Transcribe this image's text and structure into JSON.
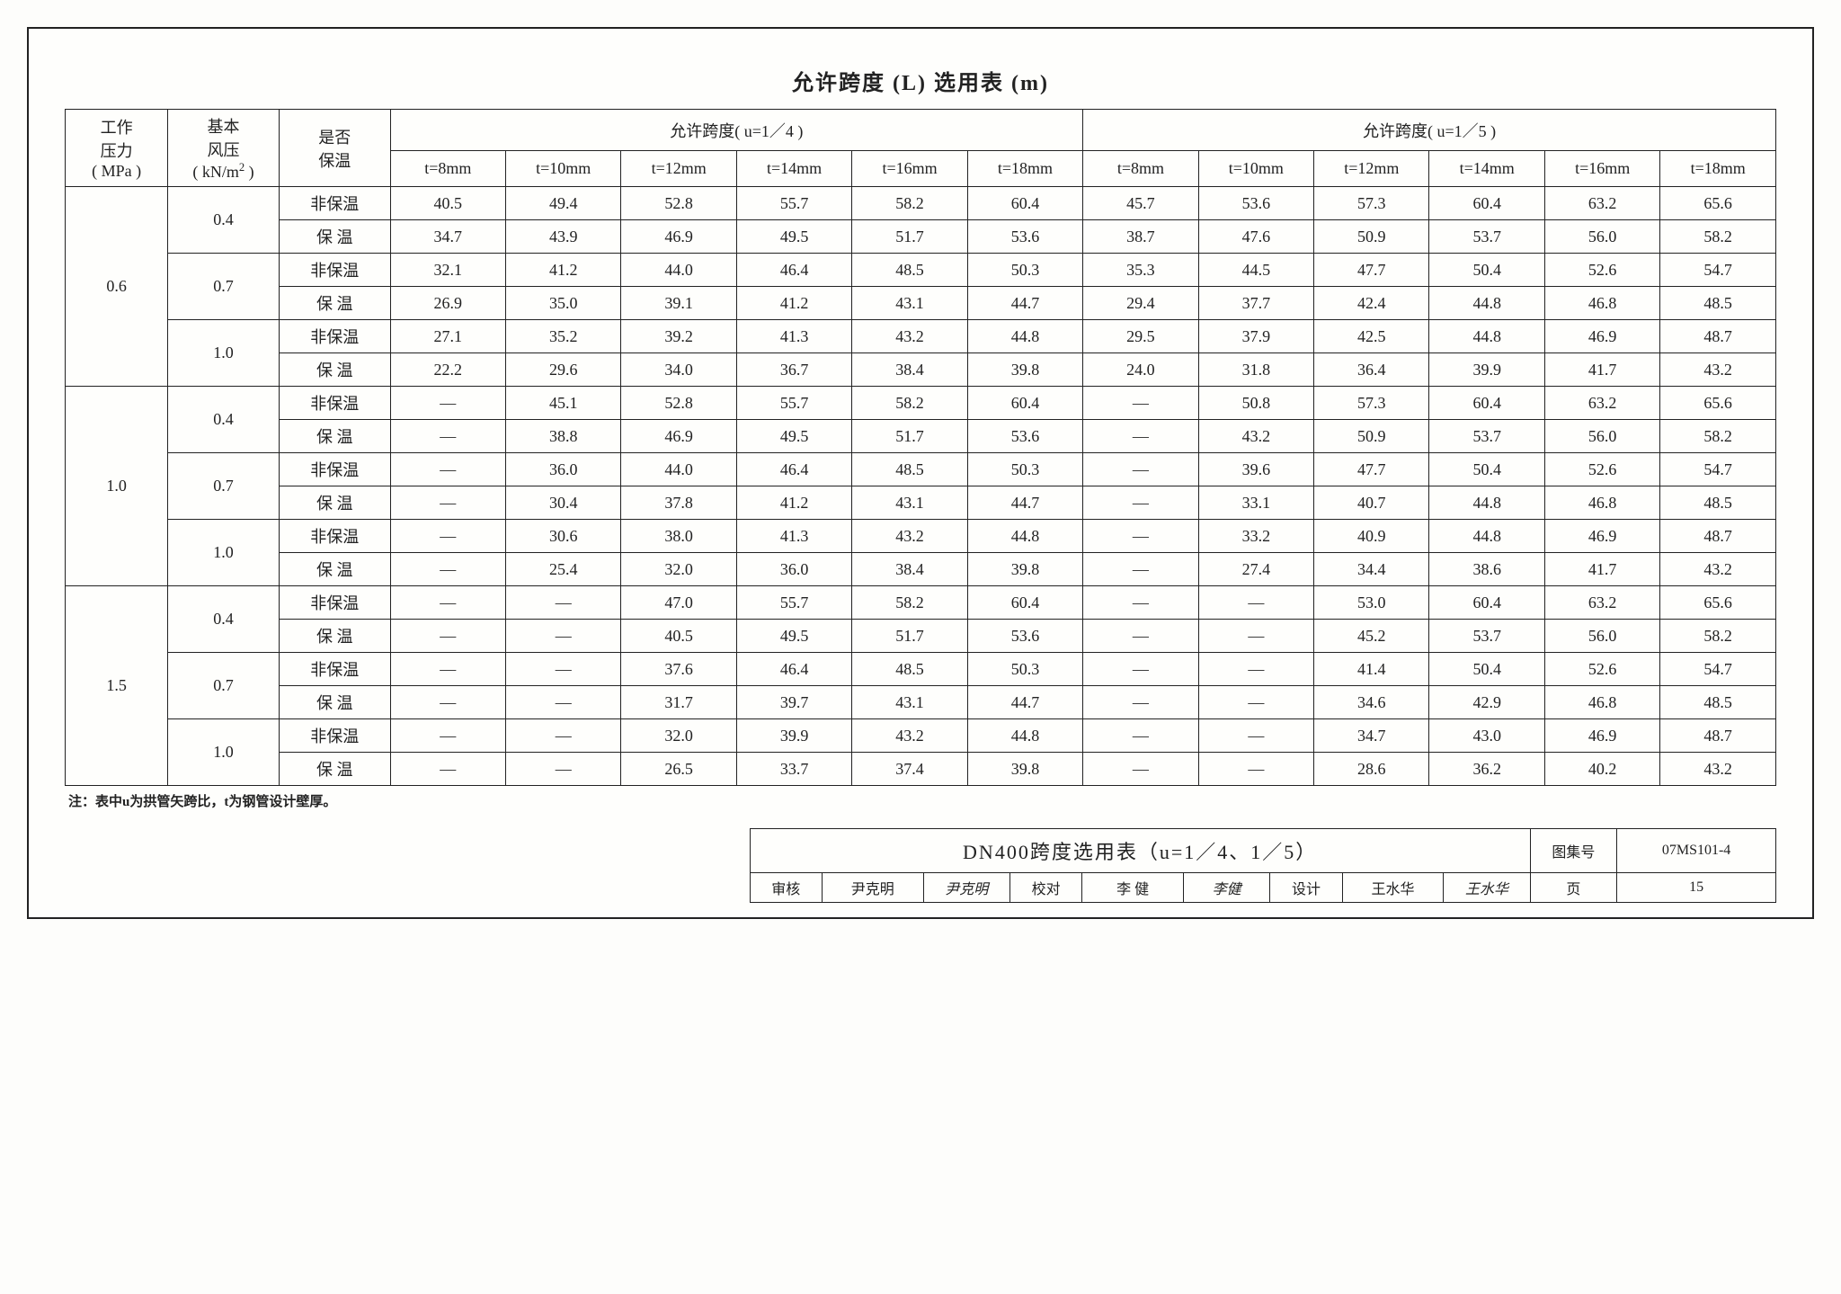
{
  "title": "允许跨度 (L) 选用表 (m)",
  "headers": {
    "pressure": "工作\n压力\n( MPa )",
    "wind": "基本\n风压\n( kN/m² )",
    "insul": "是否\n保温",
    "u14": "允许跨度( u=1／4 )",
    "u15": "允许跨度( u=1／5 )",
    "t_labels": [
      "t=8mm",
      "t=10mm",
      "t=12mm",
      "t=14mm",
      "t=16mm",
      "t=18mm"
    ]
  },
  "insul_labels": {
    "no": "非保温",
    "yes": "保 温"
  },
  "groups": [
    {
      "pressure": "0.6",
      "winds": [
        {
          "wind": "0.4",
          "rows": [
            {
              "i": "no",
              "u14": [
                "40.5",
                "49.4",
                "52.8",
                "55.7",
                "58.2",
                "60.4"
              ],
              "u15": [
                "45.7",
                "53.6",
                "57.3",
                "60.4",
                "63.2",
                "65.6"
              ]
            },
            {
              "i": "yes",
              "u14": [
                "34.7",
                "43.9",
                "46.9",
                "49.5",
                "51.7",
                "53.6"
              ],
              "u15": [
                "38.7",
                "47.6",
                "50.9",
                "53.7",
                "56.0",
                "58.2"
              ]
            }
          ]
        },
        {
          "wind": "0.7",
          "rows": [
            {
              "i": "no",
              "u14": [
                "32.1",
                "41.2",
                "44.0",
                "46.4",
                "48.5",
                "50.3"
              ],
              "u15": [
                "35.3",
                "44.5",
                "47.7",
                "50.4",
                "52.6",
                "54.7"
              ]
            },
            {
              "i": "yes",
              "u14": [
                "26.9",
                "35.0",
                "39.1",
                "41.2",
                "43.1",
                "44.7"
              ],
              "u15": [
                "29.4",
                "37.7",
                "42.4",
                "44.8",
                "46.8",
                "48.5"
              ]
            }
          ]
        },
        {
          "wind": "1.0",
          "rows": [
            {
              "i": "no",
              "u14": [
                "27.1",
                "35.2",
                "39.2",
                "41.3",
                "43.2",
                "44.8"
              ],
              "u15": [
                "29.5",
                "37.9",
                "42.5",
                "44.8",
                "46.9",
                "48.7"
              ]
            },
            {
              "i": "yes",
              "u14": [
                "22.2",
                "29.6",
                "34.0",
                "36.7",
                "38.4",
                "39.8"
              ],
              "u15": [
                "24.0",
                "31.8",
                "36.4",
                "39.9",
                "41.7",
                "43.2"
              ]
            }
          ]
        }
      ]
    },
    {
      "pressure": "1.0",
      "winds": [
        {
          "wind": "0.4",
          "rows": [
            {
              "i": "no",
              "u14": [
                "—",
                "45.1",
                "52.8",
                "55.7",
                "58.2",
                "60.4"
              ],
              "u15": [
                "—",
                "50.8",
                "57.3",
                "60.4",
                "63.2",
                "65.6"
              ]
            },
            {
              "i": "yes",
              "u14": [
                "—",
                "38.8",
                "46.9",
                "49.5",
                "51.7",
                "53.6"
              ],
              "u15": [
                "—",
                "43.2",
                "50.9",
                "53.7",
                "56.0",
                "58.2"
              ]
            }
          ]
        },
        {
          "wind": "0.7",
          "rows": [
            {
              "i": "no",
              "u14": [
                "—",
                "36.0",
                "44.0",
                "46.4",
                "48.5",
                "50.3"
              ],
              "u15": [
                "—",
                "39.6",
                "47.7",
                "50.4",
                "52.6",
                "54.7"
              ]
            },
            {
              "i": "yes",
              "u14": [
                "—",
                "30.4",
                "37.8",
                "41.2",
                "43.1",
                "44.7"
              ],
              "u15": [
                "—",
                "33.1",
                "40.7",
                "44.8",
                "46.8",
                "48.5"
              ]
            }
          ]
        },
        {
          "wind": "1.0",
          "rows": [
            {
              "i": "no",
              "u14": [
                "—",
                "30.6",
                "38.0",
                "41.3",
                "43.2",
                "44.8"
              ],
              "u15": [
                "—",
                "33.2",
                "40.9",
                "44.8",
                "46.9",
                "48.7"
              ]
            },
            {
              "i": "yes",
              "u14": [
                "—",
                "25.4",
                "32.0",
                "36.0",
                "38.4",
                "39.8"
              ],
              "u15": [
                "—",
                "27.4",
                "34.4",
                "38.6",
                "41.7",
                "43.2"
              ]
            }
          ]
        }
      ]
    },
    {
      "pressure": "1.5",
      "winds": [
        {
          "wind": "0.4",
          "rows": [
            {
              "i": "no",
              "u14": [
                "—",
                "—",
                "47.0",
                "55.7",
                "58.2",
                "60.4"
              ],
              "u15": [
                "—",
                "—",
                "53.0",
                "60.4",
                "63.2",
                "65.6"
              ]
            },
            {
              "i": "yes",
              "u14": [
                "—",
                "—",
                "40.5",
                "49.5",
                "51.7",
                "53.6"
              ],
              "u15": [
                "—",
                "—",
                "45.2",
                "53.7",
                "56.0",
                "58.2"
              ]
            }
          ]
        },
        {
          "wind": "0.7",
          "rows": [
            {
              "i": "no",
              "u14": [
                "—",
                "—",
                "37.6",
                "46.4",
                "48.5",
                "50.3"
              ],
              "u15": [
                "—",
                "—",
                "41.4",
                "50.4",
                "52.6",
                "54.7"
              ]
            },
            {
              "i": "yes",
              "u14": [
                "—",
                "—",
                "31.7",
                "39.7",
                "43.1",
                "44.7"
              ],
              "u15": [
                "—",
                "—",
                "34.6",
                "42.9",
                "46.8",
                "48.5"
              ]
            }
          ]
        },
        {
          "wind": "1.0",
          "rows": [
            {
              "i": "no",
              "u14": [
                "—",
                "—",
                "32.0",
                "39.9",
                "43.2",
                "44.8"
              ],
              "u15": [
                "—",
                "—",
                "34.7",
                "43.0",
                "46.9",
                "48.7"
              ]
            },
            {
              "i": "yes",
              "u14": [
                "—",
                "—",
                "26.5",
                "33.7",
                "37.4",
                "39.8"
              ],
              "u15": [
                "—",
                "—",
                "28.6",
                "36.2",
                "40.2",
                "43.2"
              ]
            }
          ]
        }
      ]
    }
  ],
  "note": "注：表中u为拱管矢跨比，t为钢管设计壁厚。",
  "titleblock": {
    "drawing_title": "DN400跨度选用表（u=1／4、1／5）",
    "set_label": "图集号",
    "set_value": "07MS101-4",
    "review_label": "审核",
    "review_name": "尹克明",
    "review_sig": "尹克明",
    "check_label": "校对",
    "check_name": "李 健",
    "check_sig": "李健",
    "design_label": "设计",
    "design_name": "王水华",
    "design_sig": "王水华",
    "page_label": "页",
    "page_value": "15"
  }
}
